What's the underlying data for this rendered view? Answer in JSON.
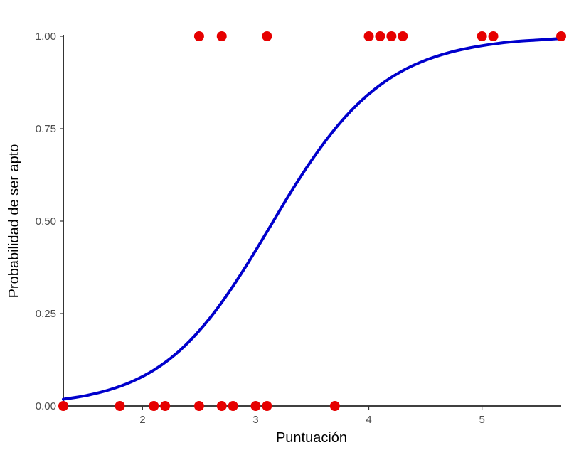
{
  "chart_data": {
    "type": "scatter",
    "title": "",
    "xlabel": "Puntuación",
    "ylabel": "Probabilidad de ser apto",
    "xlim": [
      1.3,
      5.7
    ],
    "ylim": [
      0,
      1
    ],
    "xticks": [
      {
        "value": 2,
        "label": "2"
      },
      {
        "value": 3,
        "label": "3"
      },
      {
        "value": 4,
        "label": "4"
      },
      {
        "value": 5,
        "label": "5"
      }
    ],
    "yticks": [
      {
        "value": 0,
        "label": "0.00"
      },
      {
        "value": 0.25,
        "label": "0.25"
      },
      {
        "value": 0.5,
        "label": "0.50"
      },
      {
        "value": 0.75,
        "label": "0.75"
      },
      {
        "value": 1,
        "label": "1.00"
      }
    ],
    "grid": false,
    "points": [
      {
        "x": 1.3,
        "y": 0
      },
      {
        "x": 1.8,
        "y": 0
      },
      {
        "x": 2.1,
        "y": 0
      },
      {
        "x": 2.2,
        "y": 0
      },
      {
        "x": 2.5,
        "y": 0
      },
      {
        "x": 2.7,
        "y": 0
      },
      {
        "x": 2.8,
        "y": 0
      },
      {
        "x": 3.0,
        "y": 0
      },
      {
        "x": 3.1,
        "y": 0
      },
      {
        "x": 3.7,
        "y": 0
      },
      {
        "x": 2.5,
        "y": 1
      },
      {
        "x": 2.7,
        "y": 1
      },
      {
        "x": 3.1,
        "y": 1
      },
      {
        "x": 4.0,
        "y": 1
      },
      {
        "x": 4.1,
        "y": 1
      },
      {
        "x": 4.2,
        "y": 1
      },
      {
        "x": 4.3,
        "y": 1
      },
      {
        "x": 5.0,
        "y": 1
      },
      {
        "x": 5.1,
        "y": 1
      },
      {
        "x": 5.7,
        "y": 1
      }
    ],
    "fitted_curve": {
      "x": [
        1.3,
        1.5,
        1.7,
        1.9,
        2.1,
        2.3,
        2.5,
        2.7,
        2.9,
        3.1,
        3.3,
        3.5,
        3.7,
        3.9,
        4.1,
        4.3,
        4.5,
        4.7,
        4.9,
        5.1,
        5.3,
        5.5,
        5.7
      ],
      "y": [
        0.018,
        0.028,
        0.043,
        0.065,
        0.097,
        0.142,
        0.203,
        0.28,
        0.371,
        0.471,
        0.573,
        0.667,
        0.749,
        0.816,
        0.868,
        0.907,
        0.935,
        0.955,
        0.969,
        0.979,
        0.986,
        0.99,
        0.994
      ]
    },
    "colors": {
      "points": "#e60000",
      "curve": "#0000cc",
      "axis": "#000000"
    }
  }
}
